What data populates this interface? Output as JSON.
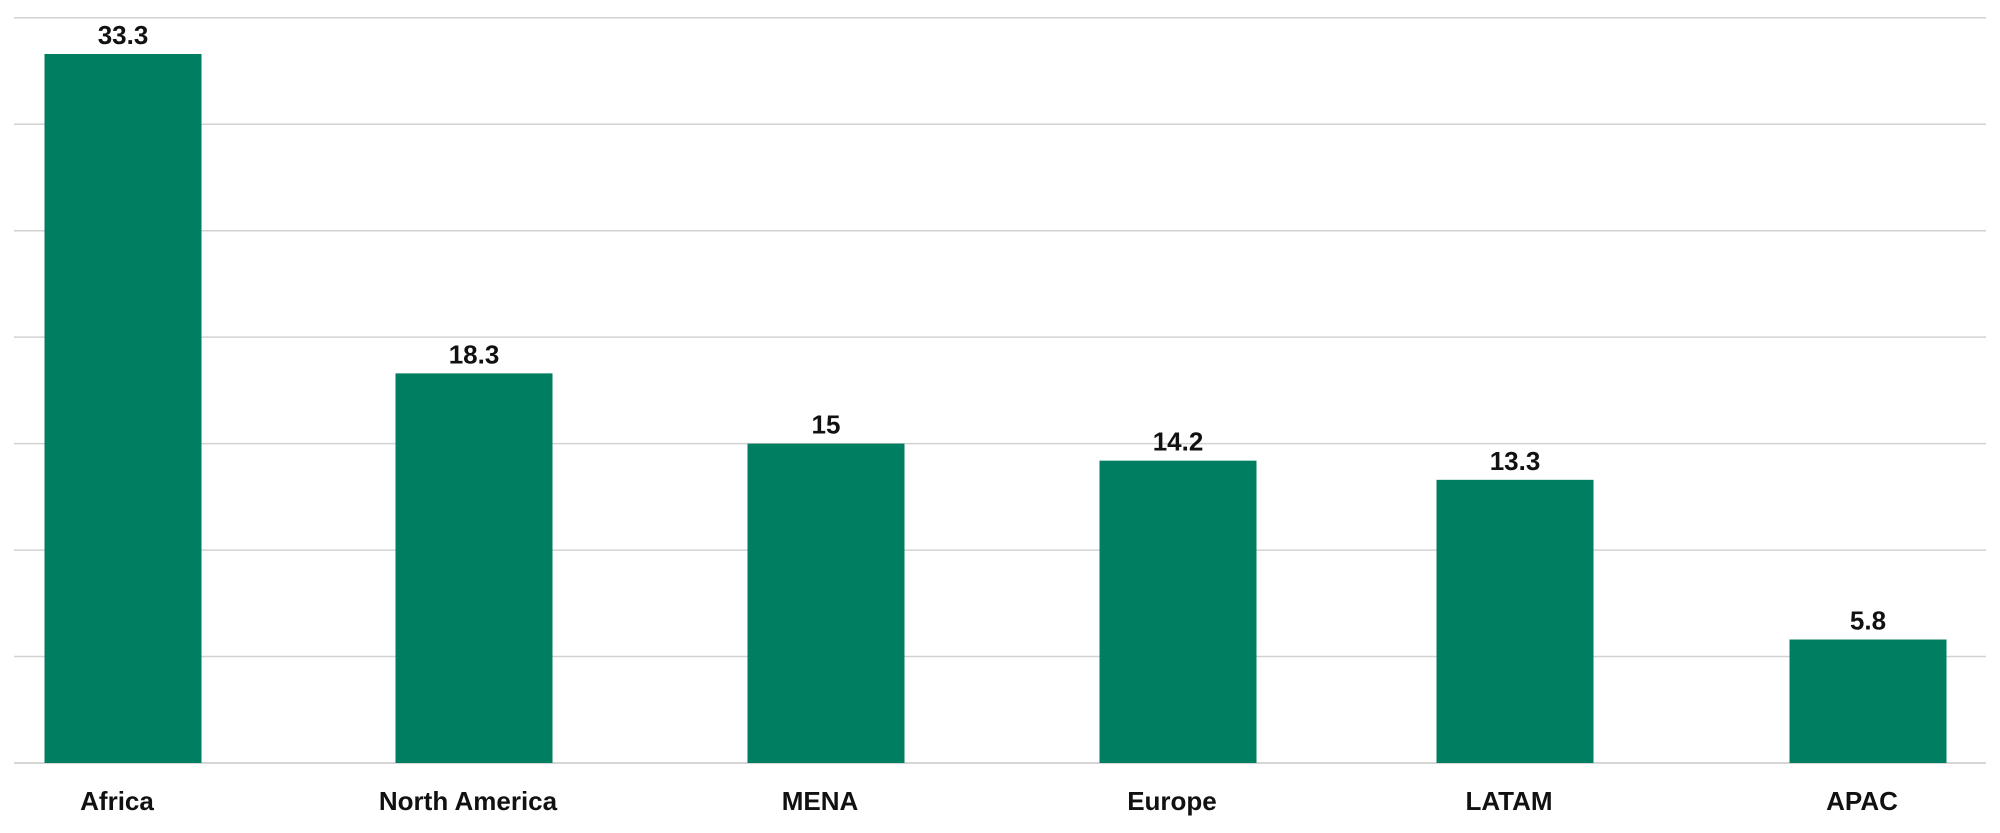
{
  "chart_data": {
    "type": "bar",
    "categories": [
      "Africa",
      "North America",
      "MENA",
      "Europe",
      "LATAM",
      "APAC"
    ],
    "values": [
      33.3,
      18.3,
      15,
      14.2,
      13.3,
      5.8
    ],
    "value_labels": [
      "33.3",
      "18.3",
      "15",
      "14.2",
      "13.3",
      "5.8"
    ],
    "title": "",
    "xlabel": "",
    "ylabel": "",
    "ylim": [
      0,
      35
    ],
    "grid": true,
    "legend": "none",
    "bar_color": "#007e62"
  }
}
